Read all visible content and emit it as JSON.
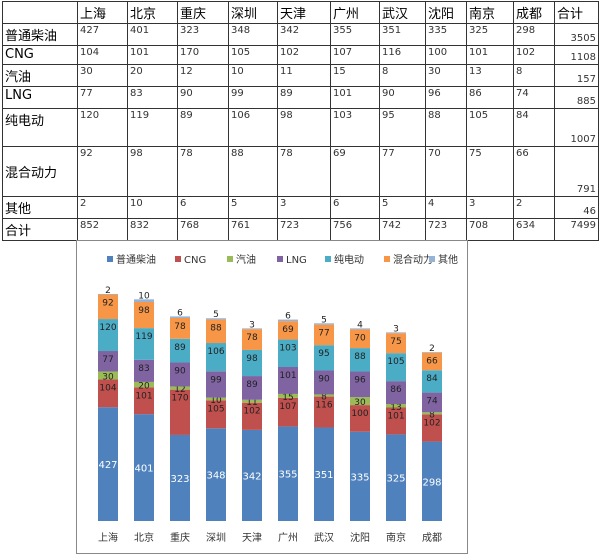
{
  "table": {
    "columns": [
      "",
      "上海",
      "北京",
      "重庆",
      "深圳",
      "天津",
      "广州",
      "武汉",
      "沈阳",
      "南京",
      "成都",
      "合计"
    ],
    "rows": [
      {
        "label": "普通柴油",
        "values": [
          427,
          401,
          323,
          348,
          342,
          355,
          351,
          335,
          325,
          298
        ],
        "total": 3505
      },
      {
        "label": "CNG",
        "values": [
          104,
          101,
          170,
          105,
          102,
          107,
          116,
          100,
          101,
          102
        ],
        "total": 1108
      },
      {
        "label": "汽油",
        "values": [
          30,
          20,
          12,
          10,
          11,
          15,
          8,
          30,
          13,
          8
        ],
        "total": 157
      },
      {
        "label": "LNG",
        "values": [
          77,
          83,
          90,
          99,
          89,
          101,
          90,
          96,
          86,
          74
        ],
        "total": 885
      },
      {
        "label": "纯电动",
        "values": [
          120,
          119,
          89,
          106,
          98,
          103,
          95,
          88,
          105,
          84
        ],
        "total": 1007
      },
      {
        "label": "混合动力",
        "values": [
          92,
          98,
          78,
          88,
          78,
          69,
          77,
          70,
          75,
          66
        ],
        "total": 791
      },
      {
        "label": "其他",
        "values": [
          2,
          10,
          6,
          5,
          3,
          6,
          5,
          4,
          3,
          2
        ],
        "total": 46
      },
      {
        "label": "合计",
        "values": [
          852,
          832,
          768,
          761,
          723,
          756,
          742,
          723,
          708,
          634
        ],
        "total": 7499
      }
    ]
  },
  "chart_data": {
    "type": "bar",
    "stacked": true,
    "categories": [
      "上海",
      "北京",
      "重庆",
      "深圳",
      "天津",
      "广州",
      "武汉",
      "沈阳",
      "南京",
      "成都"
    ],
    "series": [
      {
        "name": "普通柴油",
        "color": "#4f81bd",
        "values": [
          427,
          401,
          323,
          348,
          342,
          355,
          351,
          335,
          325,
          298
        ]
      },
      {
        "name": "CNG",
        "color": "#c0504d",
        "values": [
          104,
          101,
          170,
          105,
          102,
          107,
          116,
          100,
          101,
          102
        ]
      },
      {
        "name": "汽油",
        "color": "#9bbb59",
        "values": [
          30,
          20,
          12,
          10,
          11,
          15,
          8,
          30,
          13,
          8
        ]
      },
      {
        "name": "LNG",
        "color": "#8064a2",
        "values": [
          77,
          83,
          90,
          99,
          89,
          101,
          90,
          96,
          86,
          74
        ]
      },
      {
        "name": "纯电动",
        "color": "#4bacc6",
        "values": [
          120,
          119,
          89,
          106,
          98,
          103,
          95,
          88,
          105,
          84
        ]
      },
      {
        "name": "混合动力",
        "color": "#f79646",
        "values": [
          92,
          98,
          78,
          88,
          78,
          69,
          77,
          70,
          75,
          66
        ]
      },
      {
        "name": "其他",
        "color": "#95b3d7",
        "values": [
          2,
          10,
          6,
          5,
          3,
          6,
          5,
          4,
          3,
          2
        ]
      }
    ],
    "legend": "top",
    "data_labels": true,
    "ylim": [
      0,
      900
    ]
  }
}
